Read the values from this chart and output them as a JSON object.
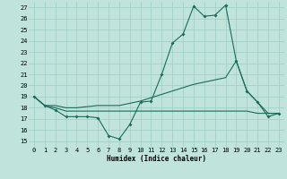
{
  "xlabel": "Humidex (Indice chaleur)",
  "xlim": [
    -0.5,
    23.5
  ],
  "ylim": [
    14.5,
    27.5
  ],
  "yticks": [
    15,
    16,
    17,
    18,
    19,
    20,
    21,
    22,
    23,
    24,
    25,
    26,
    27
  ],
  "xticks": [
    0,
    1,
    2,
    3,
    4,
    5,
    6,
    7,
    8,
    9,
    10,
    11,
    12,
    13,
    14,
    15,
    16,
    17,
    18,
    19,
    20,
    21,
    22,
    23
  ],
  "bg_color": "#c0e4dc",
  "line_color": "#1a6b5a",
  "grid_color": "#9eccc4",
  "line1_x": [
    0,
    1,
    2,
    3,
    4,
    5,
    6,
    7,
    8,
    9,
    10,
    11,
    12,
    13,
    14,
    15,
    16,
    17,
    18,
    19,
    20,
    21,
    22,
    23
  ],
  "line1_y": [
    19.0,
    18.2,
    17.8,
    17.2,
    17.2,
    17.2,
    17.1,
    15.5,
    15.2,
    16.5,
    18.5,
    18.6,
    21.0,
    23.8,
    24.6,
    27.1,
    26.2,
    26.3,
    27.2,
    22.2,
    19.5,
    18.5,
    17.2,
    17.5
  ],
  "line2_x": [
    0,
    1,
    2,
    3,
    4,
    5,
    6,
    7,
    8,
    9,
    10,
    11,
    12,
    13,
    14,
    15,
    16,
    17,
    18,
    19,
    20,
    21,
    22,
    23
  ],
  "line2_y": [
    19.0,
    18.2,
    18.2,
    18.0,
    18.0,
    18.1,
    18.2,
    18.2,
    18.2,
    18.4,
    18.6,
    18.9,
    19.2,
    19.5,
    19.8,
    20.1,
    20.3,
    20.5,
    20.7,
    22.2,
    19.5,
    18.5,
    17.5,
    17.5
  ],
  "line3_x": [
    0,
    1,
    2,
    3,
    4,
    5,
    6,
    7,
    8,
    9,
    10,
    11,
    12,
    13,
    14,
    15,
    16,
    17,
    18,
    19,
    20,
    21,
    22,
    23
  ],
  "line3_y": [
    19.0,
    18.2,
    18.0,
    17.7,
    17.7,
    17.7,
    17.7,
    17.7,
    17.7,
    17.7,
    17.7,
    17.7,
    17.7,
    17.7,
    17.7,
    17.7,
    17.7,
    17.7,
    17.7,
    17.7,
    17.7,
    17.5,
    17.5,
    17.5
  ]
}
